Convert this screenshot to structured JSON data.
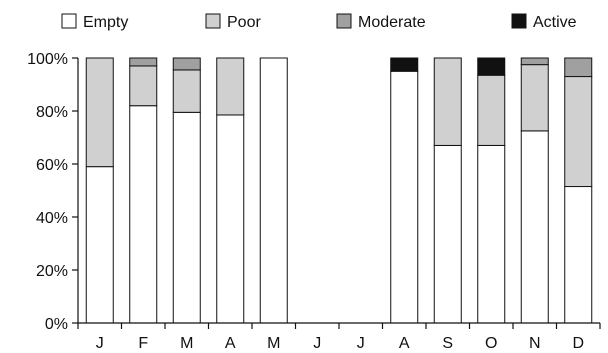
{
  "chart_data": {
    "type": "bar",
    "stacked": true,
    "categories": [
      "J",
      "F",
      "M",
      "A",
      "M",
      "J",
      "J",
      "A",
      "S",
      "O",
      "N",
      "D"
    ],
    "series": [
      {
        "name": "Empty",
        "color": "#ffffff",
        "values": [
          59,
          82,
          79.5,
          78.5,
          100,
          null,
          null,
          95,
          67,
          67,
          72.5,
          51.5
        ]
      },
      {
        "name": "Poor",
        "color": "#d0d0d0",
        "values": [
          41,
          15,
          16,
          21.5,
          0,
          null,
          null,
          0,
          33,
          26.5,
          25,
          41.5
        ]
      },
      {
        "name": "Moderate",
        "color": "#a0a0a0",
        "values": [
          0,
          3,
          4.5,
          0,
          0,
          null,
          null,
          0,
          0,
          0,
          2.5,
          7
        ]
      },
      {
        "name": "Active",
        "color": "#111111",
        "values": [
          0,
          0,
          0,
          0,
          0,
          null,
          null,
          5,
          0,
          6.5,
          0,
          0
        ]
      }
    ],
    "y_ticks": [
      "0%",
      "20%",
      "40%",
      "60%",
      "80%",
      "100%"
    ],
    "ylim": [
      0,
      100
    ],
    "legend_position": "top",
    "grid": false
  }
}
